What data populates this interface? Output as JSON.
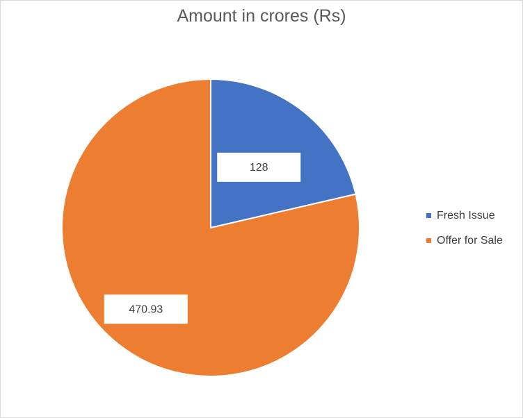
{
  "chart_data": {
    "type": "pie",
    "title": "Amount in crores (Rs)",
    "categories": [
      "Fresh Issue",
      "Offer for Sale"
    ],
    "values": [
      128,
      470.93
    ],
    "data_labels": [
      "128",
      "470.93"
    ],
    "colors": [
      "#4472C4",
      "#ED7D31"
    ],
    "start_angle": "12 o'clock, clockwise",
    "legend_position": "right"
  }
}
